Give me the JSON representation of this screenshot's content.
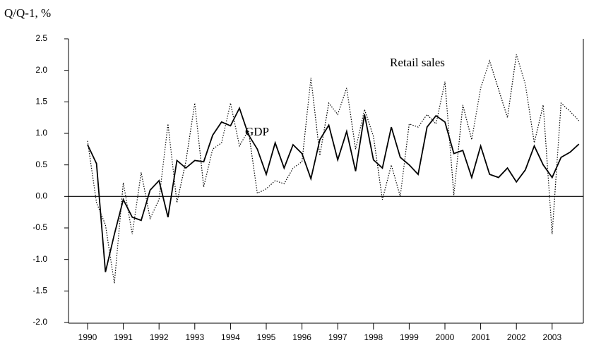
{
  "chart_data": {
    "type": "line",
    "ylabel": "Q/Q-1, %",
    "categories": [
      "1990",
      null,
      null,
      null,
      "1991",
      null,
      null,
      null,
      "1992",
      null,
      null,
      null,
      "1993",
      null,
      null,
      null,
      "1994",
      null,
      null,
      null,
      "1995",
      null,
      null,
      null,
      "1996",
      null,
      null,
      null,
      "1997",
      null,
      null,
      null,
      "1998",
      null,
      null,
      null,
      "1999",
      null,
      null,
      null,
      "2000",
      null,
      null,
      null,
      "2001",
      null,
      null,
      null,
      "2002",
      null,
      null,
      null,
      "2003",
      null,
      null,
      null
    ],
    "series": [
      {
        "name": "GDP",
        "color": "#000000",
        "line_style": "solid",
        "values": [
          0.82,
          0.52,
          -1.2,
          -0.6,
          -0.05,
          -0.33,
          -0.38,
          0.1,
          0.25,
          -0.33,
          0.57,
          0.45,
          0.57,
          0.55,
          0.97,
          1.18,
          1.12,
          1.4,
          0.98,
          0.75,
          0.35,
          0.85,
          0.45,
          0.82,
          0.68,
          0.28,
          0.9,
          1.13,
          0.58,
          1.03,
          0.4,
          1.3,
          0.58,
          0.45,
          1.1,
          0.62,
          0.5,
          0.35,
          1.1,
          1.28,
          1.18,
          0.68,
          0.73,
          0.3,
          0.8,
          0.35,
          0.3,
          0.45,
          0.23,
          0.42,
          0.8,
          0.5,
          0.3,
          0.62,
          0.7,
          0.83
        ]
      },
      {
        "name": "Retail sales",
        "color": "#000000",
        "line_style": "dotted",
        "values": [
          0.88,
          -0.1,
          -0.45,
          -1.38,
          0.22,
          -0.6,
          0.38,
          -0.35,
          -0.05,
          1.15,
          -0.1,
          0.55,
          1.48,
          0.15,
          0.75,
          0.85,
          1.48,
          0.8,
          1.05,
          0.05,
          0.12,
          0.25,
          0.2,
          0.45,
          0.55,
          1.88,
          0.65,
          1.48,
          1.3,
          1.72,
          0.75,
          1.38,
          0.95,
          -0.05,
          0.5,
          0.0,
          1.15,
          1.1,
          1.3,
          1.15,
          1.82,
          0.02,
          1.45,
          0.9,
          1.72,
          2.15,
          1.7,
          1.25,
          2.25,
          1.78,
          0.85,
          1.45,
          -0.6,
          1.48,
          1.35,
          1.2
        ]
      }
    ],
    "ylim": [
      -2,
      2.5
    ],
    "yticks": [
      2.5,
      {
        "value": 2,
        "label": "2.0"
      },
      1.5,
      {
        "value": 1,
        "label": "1.0"
      },
      0.5,
      {
        "value": 0,
        "label": "0.0"
      },
      -0.5,
      {
        "value": -1,
        "label": "-1.0"
      },
      -1.5,
      {
        "value": -2,
        "label": "-2.0"
      }
    ],
    "zero_line": true
  }
}
